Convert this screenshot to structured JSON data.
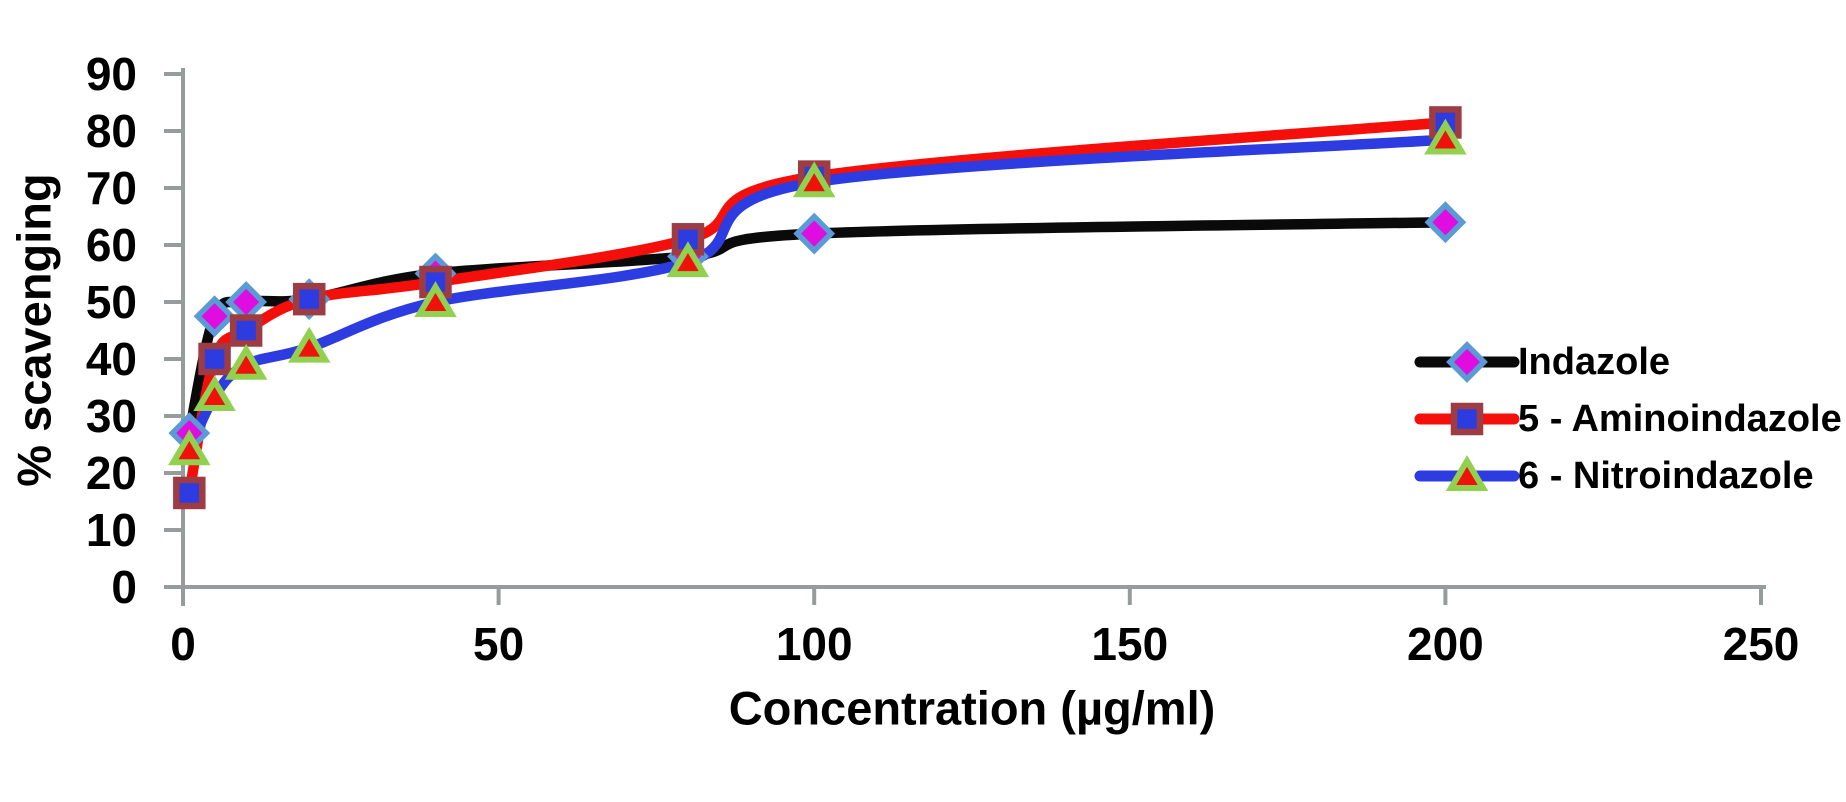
{
  "chart_data": {
    "type": "line",
    "title": "",
    "xlabel": "Concentration (µg/ml)",
    "ylabel": "% scavenging",
    "xlim": [
      0,
      250
    ],
    "ylim": [
      0,
      90
    ],
    "x_ticks": [
      0,
      50,
      100,
      150,
      200,
      250
    ],
    "y_ticks": [
      0,
      10,
      20,
      30,
      40,
      50,
      60,
      70,
      80,
      90
    ],
    "grid": false,
    "line_style": "smooth",
    "legend_position": "middle-right",
    "x": [
      1,
      5,
      10,
      20,
      40,
      80,
      100,
      200
    ],
    "series": [
      {
        "name": "Indazole",
        "line_color": "#0a0a0a",
        "marker": "diamond",
        "marker_fill": "#e00de0",
        "marker_border": "#5b9bd5",
        "values": [
          27,
          47.5,
          50,
          50.5,
          55,
          58,
          62,
          64
        ]
      },
      {
        "name": "5 - Aminoindazole",
        "line_color": "#f50f0b",
        "marker": "square",
        "marker_fill": "#2d3ce1",
        "marker_border": "#9e3c44",
        "values": [
          16.5,
          40,
          45,
          50.5,
          53.5,
          61,
          72,
          81.5
        ]
      },
      {
        "name": "6 - Nitroindazole",
        "line_color": "#2d3ce1",
        "marker": "triangle",
        "marker_fill": "#ee120b",
        "marker_border": "#92d050",
        "values": [
          24,
          33.5,
          39,
          42,
          50,
          57,
          71,
          78.5
        ]
      }
    ]
  },
  "style": {
    "background": "#ffffff",
    "axis_color": "#969b9b",
    "text_color": "#000000"
  }
}
